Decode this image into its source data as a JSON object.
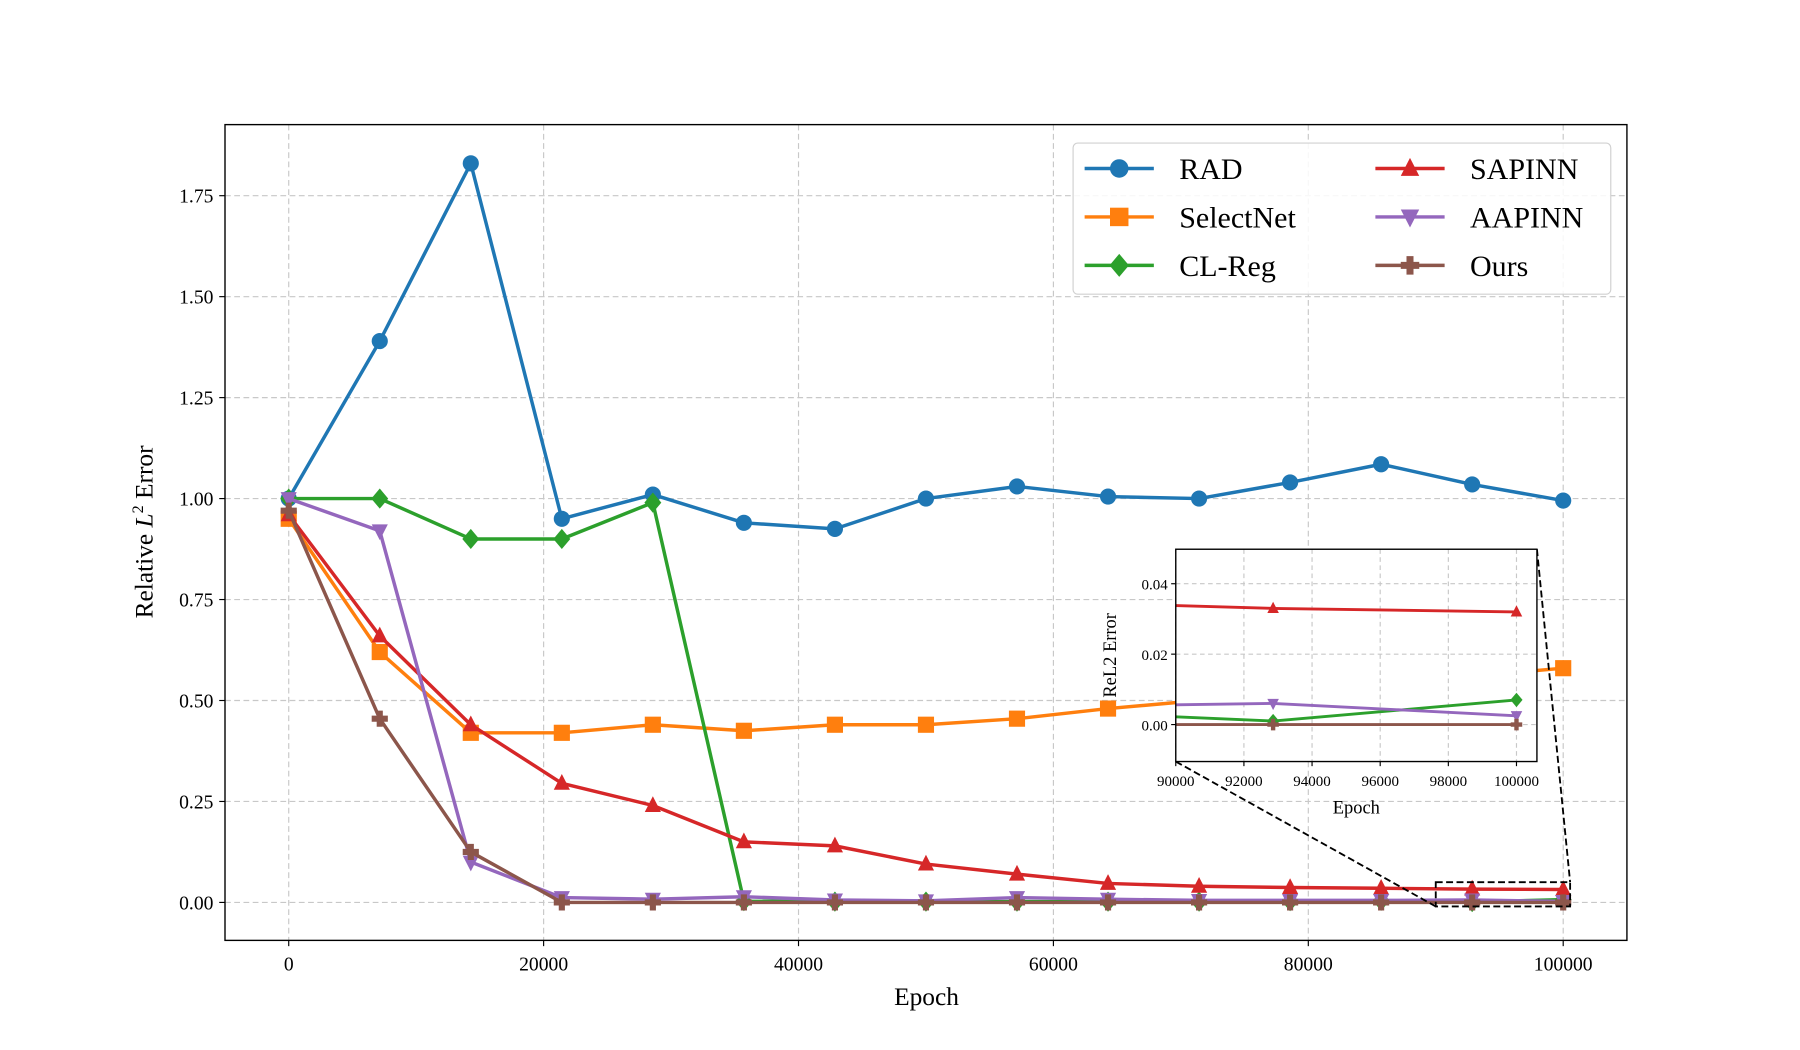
{
  "chart_data": {
    "type": "line",
    "xlabel": "Epoch",
    "ylabel": "Relative L² Error",
    "ylabel_parts": {
      "prefix": "Relative ",
      "var": "L",
      "sup": "2",
      "suffix": " Error"
    },
    "xlim": [
      -5000,
      105000
    ],
    "ylim": [
      -0.094,
      1.926
    ],
    "xticks": [
      0,
      20000,
      40000,
      60000,
      80000,
      100000
    ],
    "xtick_labels": [
      "0",
      "20000",
      "40000",
      "60000",
      "80000",
      "100000"
    ],
    "yticks": [
      0,
      0.25,
      0.5,
      0.75,
      1.0,
      1.25,
      1.5,
      1.75
    ],
    "ytick_labels": [
      "0.00",
      "0.25",
      "0.50",
      "0.75",
      "1.00",
      "1.25",
      "1.50",
      "1.75"
    ],
    "grid": true,
    "legend_placement": "upper-right",
    "x": [
      0,
      7143,
      14286,
      21429,
      28571,
      35714,
      42857,
      50000,
      57143,
      64286,
      71429,
      78571,
      85714,
      92857,
      100000
    ],
    "series": [
      {
        "name": "RAD",
        "color": "#1f77b4",
        "marker": "circle",
        "values": [
          1.0,
          1.39,
          1.83,
          0.95,
          1.01,
          0.94,
          0.925,
          1.0,
          1.03,
          1.005,
          1.0,
          1.04,
          1.085,
          1.035,
          0.995
        ]
      },
      {
        "name": "SelectNet",
        "color": "#ff7f0e",
        "marker": "square",
        "values": [
          0.95,
          0.62,
          0.42,
          0.42,
          0.44,
          0.425,
          0.44,
          0.44,
          0.455,
          0.48,
          0.5,
          0.52,
          0.54,
          0.56,
          0.58
        ]
      },
      {
        "name": "CL-Reg",
        "color": "#2ca02c",
        "marker": "diamond",
        "values": [
          1.0,
          1.0,
          0.9,
          0.9,
          0.99,
          0.003,
          0.002,
          0.002,
          0.002,
          0.002,
          0.002,
          0.003,
          0.004,
          0.001,
          0.007
        ]
      },
      {
        "name": "SAPINN",
        "color": "#d62728",
        "marker": "triangle-up",
        "values": [
          0.96,
          0.66,
          0.44,
          0.295,
          0.24,
          0.15,
          0.14,
          0.095,
          0.07,
          0.047,
          0.04,
          0.037,
          0.035,
          0.033,
          0.032
        ]
      },
      {
        "name": "AAPINN",
        "color": "#9467bd",
        "marker": "triangle-down",
        "values": [
          1.0,
          0.92,
          0.1,
          0.012,
          0.008,
          0.014,
          0.006,
          0.004,
          0.012,
          0.008,
          0.005,
          0.005,
          0.005,
          0.006,
          0.0025
        ]
      },
      {
        "name": "Ours",
        "color": "#8c564b",
        "marker": "plus",
        "values": [
          0.97,
          0.455,
          0.125,
          0.0,
          0.0,
          0.0,
          0.0,
          0.0,
          0.0,
          0.0,
          0.0,
          0.0,
          0.0,
          0.0,
          0.0
        ]
      }
    ],
    "inset": {
      "xlabel": "Epoch",
      "ylabel": "ReL2 Error",
      "xlim": [
        90000,
        100600
      ],
      "ylim": [
        -0.0105,
        0.0498
      ],
      "xticks": [
        90000,
        92000,
        94000,
        96000,
        98000,
        100000
      ],
      "xtick_labels": [
        "90000",
        "92000",
        "94000",
        "96000",
        "98000",
        "100000"
      ],
      "yticks": [
        0,
        0.02,
        0.04
      ],
      "ytick_labels": [
        "0.00",
        "0.02",
        "0.04"
      ],
      "grid": true,
      "zoom_region": {
        "x": [
          90000,
          100000
        ],
        "y": [
          -0.01,
          0.05
        ]
      }
    }
  }
}
